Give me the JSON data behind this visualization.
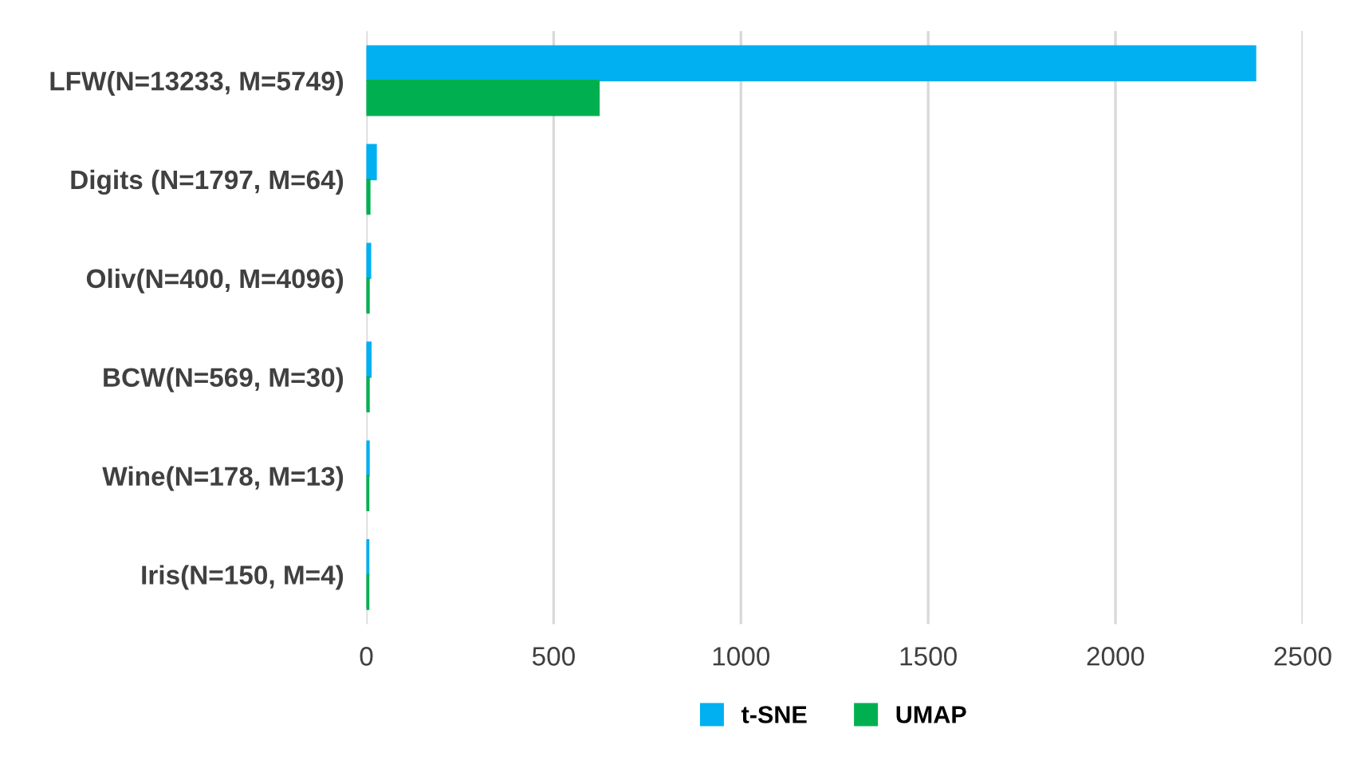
{
  "chart_data": {
    "type": "bar",
    "orientation": "horizontal",
    "categories": [
      "LFW(N=13233, M=5749)",
      "Digits (N=1797, M=64)",
      "Oliv(N=400, M=4096)",
      "BCW(N=569, M=30)",
      "Wine(N=178, M=13)",
      "Iris(N=150, M=4)"
    ],
    "series": [
      {
        "name": "t-SNE",
        "color": "#00b0f0",
        "values": [
          2370,
          22,
          7,
          8,
          3,
          2
        ]
      },
      {
        "name": "UMAP",
        "color": "#00b050",
        "values": [
          617,
          5,
          3,
          3,
          2,
          2
        ]
      }
    ],
    "xlim": [
      0,
      2500
    ],
    "xticks": [
      0,
      500,
      1000,
      1500,
      2000,
      2500
    ],
    "grid": "x",
    "legend": "bottom"
  }
}
